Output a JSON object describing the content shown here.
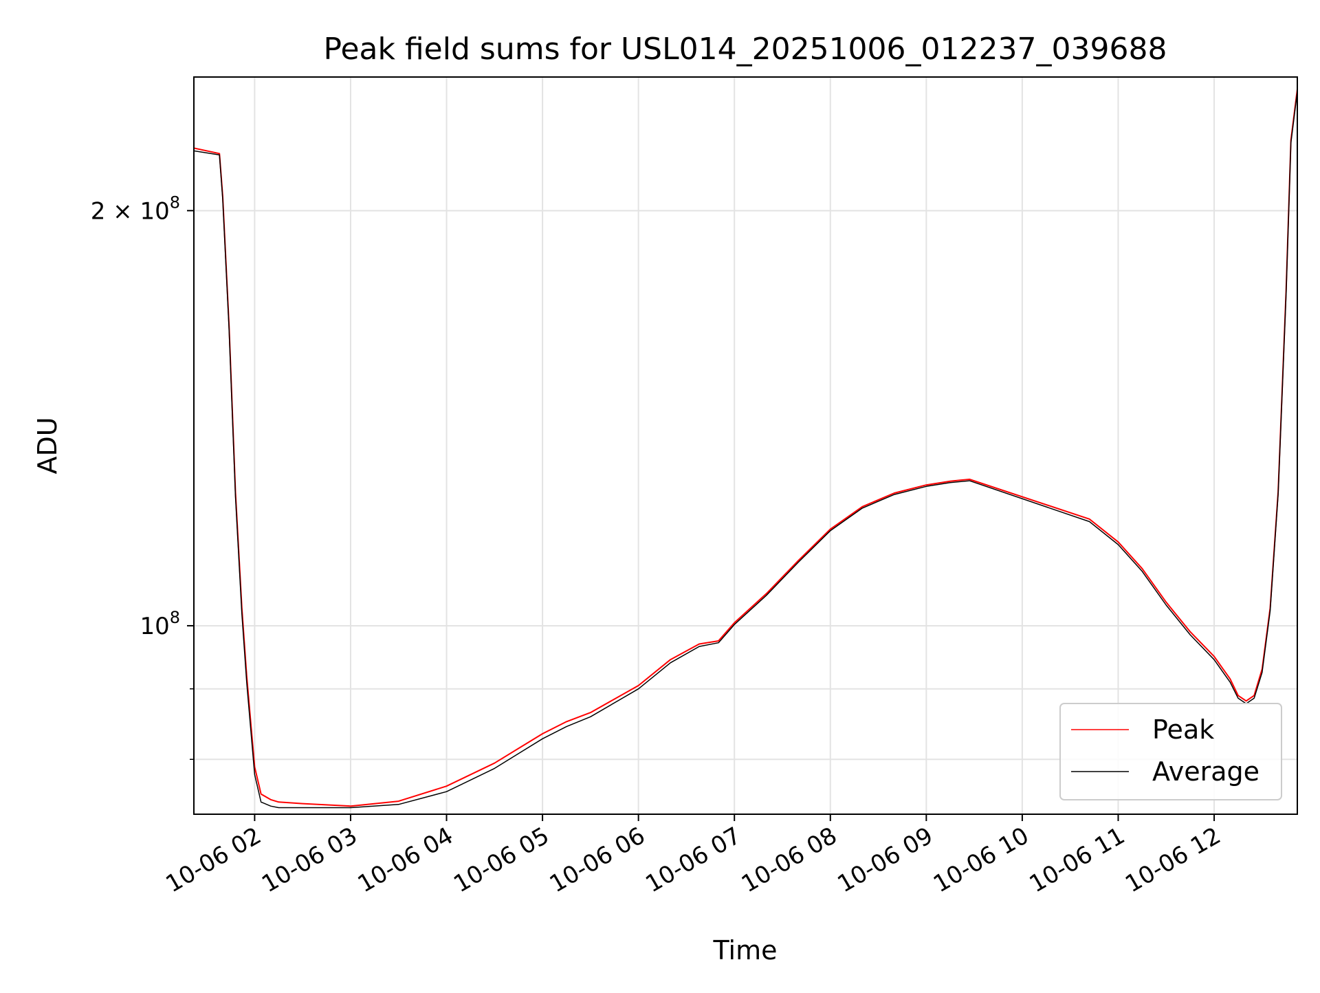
{
  "chart_data": {
    "type": "line",
    "title": "Peak field sums for USL014_20251006_012237_039688",
    "xlabel": "Time",
    "ylabel": "ADU",
    "y_scale": "log",
    "x_unit": "hours",
    "xlim": [
      "2025-10-06 01:22",
      "2025-10-06 12:52"
    ],
    "ylim": [
      73000000,
      250000000
    ],
    "x_ticks": [
      {
        "value": "2025-10-06 02:00",
        "label": "10-06 02"
      },
      {
        "value": "2025-10-06 03:00",
        "label": "10-06 03"
      },
      {
        "value": "2025-10-06 04:00",
        "label": "10-06 04"
      },
      {
        "value": "2025-10-06 05:00",
        "label": "10-06 05"
      },
      {
        "value": "2025-10-06 06:00",
        "label": "10-06 06"
      },
      {
        "value": "2025-10-06 07:00",
        "label": "10-06 07"
      },
      {
        "value": "2025-10-06 08:00",
        "label": "10-06 08"
      },
      {
        "value": "2025-10-06 09:00",
        "label": "10-06 09"
      },
      {
        "value": "2025-10-06 10:00",
        "label": "10-06 10"
      },
      {
        "value": "2025-10-06 11:00",
        "label": "10-06 11"
      },
      {
        "value": "2025-10-06 12:00",
        "label": "10-06 12"
      }
    ],
    "y_major_ticks": [
      {
        "value": 100000000,
        "label_base": "10",
        "label_exp": "8",
        "label_coef": ""
      },
      {
        "value": 200000000,
        "label_base": "10",
        "label_exp": "8",
        "label_coef": "2 × "
      }
    ],
    "y_minor_gridlines": [
      80000000,
      90000000
    ],
    "grid": true,
    "legend_position": "lower-right",
    "colors": {
      "peak": "#ff0000",
      "average": "#000000",
      "grid": "#e3e3e3"
    },
    "x": [
      "2025-10-06 01:22",
      "2025-10-06 01:38",
      "2025-10-06 01:40",
      "2025-10-06 01:44",
      "2025-10-06 01:48",
      "2025-10-06 01:52",
      "2025-10-06 01:55",
      "2025-10-06 01:58",
      "2025-10-06 02:00",
      "2025-10-06 02:04",
      "2025-10-06 02:10",
      "2025-10-06 02:15",
      "2025-10-06 02:30",
      "2025-10-06 03:00",
      "2025-10-06 03:30",
      "2025-10-06 04:00",
      "2025-10-06 04:30",
      "2025-10-06 05:00",
      "2025-10-06 05:15",
      "2025-10-06 05:30",
      "2025-10-06 06:00",
      "2025-10-06 06:20",
      "2025-10-06 06:38",
      "2025-10-06 06:50",
      "2025-10-06 07:00",
      "2025-10-06 07:20",
      "2025-10-06 07:40",
      "2025-10-06 08:00",
      "2025-10-06 08:20",
      "2025-10-06 08:40",
      "2025-10-06 09:00",
      "2025-10-06 09:15",
      "2025-10-06 09:27",
      "2025-10-06 10:42",
      "2025-10-06 11:00",
      "2025-10-06 11:15",
      "2025-10-06 11:30",
      "2025-10-06 11:45",
      "2025-10-06 12:00",
      "2025-10-06 12:10",
      "2025-10-06 12:15",
      "2025-10-06 12:20",
      "2025-10-06 12:25",
      "2025-10-06 12:30",
      "2025-10-06 12:35",
      "2025-10-06 12:40",
      "2025-10-06 12:45",
      "2025-10-06 12:48",
      "2025-10-06 12:52"
    ],
    "series": [
      {
        "name": "Peak",
        "color": "#ff0000",
        "values": [
          222000000,
          220000000,
          205000000,
          165000000,
          125000000,
          103000000,
          92000000,
          84000000,
          79000000,
          75500000,
          74800000,
          74500000,
          74300000,
          74000000,
          74600000,
          76500000,
          79500000,
          83500000,
          85200000,
          86500000,
          90500000,
          94500000,
          97000000,
          97500000,
          100500000,
          105500000,
          111500000,
          117500000,
          122000000,
          124800000,
          126500000,
          127300000,
          127700000,
          119500000,
          115000000,
          110000000,
          104000000,
          99000000,
          95000000,
          91500000,
          89000000,
          88200000,
          89000000,
          93000000,
          103000000,
          125000000,
          175000000,
          225000000,
          245000000
        ]
      },
      {
        "name": "Average",
        "color": "#000000",
        "values": [
          221000000,
          219500000,
          204000000,
          164000000,
          124000000,
          102000000,
          91000000,
          83000000,
          78000000,
          74500000,
          74000000,
          73800000,
          73800000,
          73800000,
          74200000,
          75800000,
          78800000,
          82800000,
          84500000,
          85900000,
          90000000,
          94000000,
          96600000,
          97200000,
          100200000,
          105200000,
          111200000,
          117200000,
          121700000,
          124500000,
          126200000,
          127000000,
          127400000,
          119000000,
          114500000,
          109500000,
          103500000,
          98500000,
          94500000,
          91000000,
          88600000,
          87800000,
          88600000,
          92500000,
          102500000,
          124500000,
          174000000,
          224000000,
          244000000
        ]
      }
    ]
  }
}
